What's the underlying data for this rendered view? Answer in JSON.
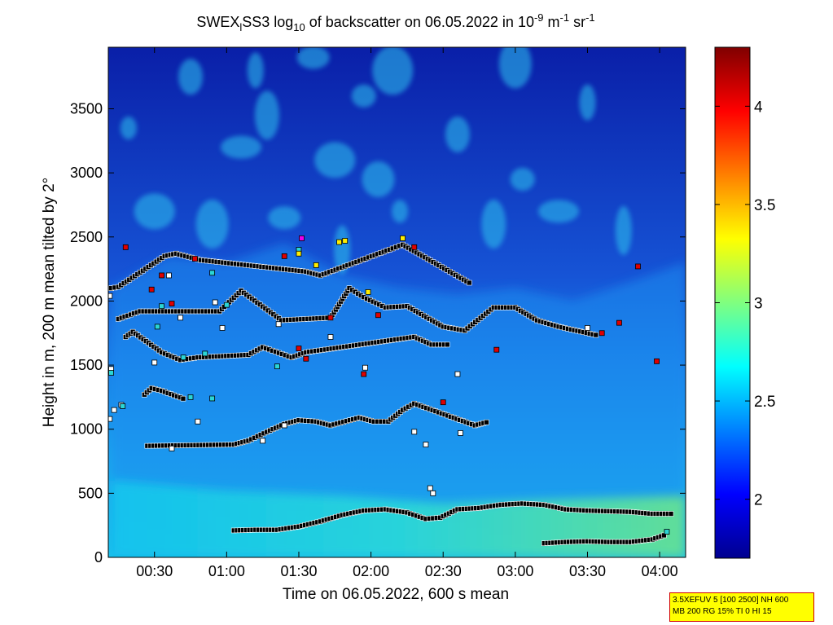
{
  "chart_data": {
    "type": "heatmap",
    "title": {
      "prefix": "SWEX",
      "sub1": "l",
      "mid": "SS3 log",
      "sub2": "10",
      "mid2": " of backscatter on 06.05.2022 in 10",
      "sup1": "-9",
      "mid3": " m",
      "sup2": "-1",
      "mid4": " sr",
      "sup3": "-1"
    },
    "xlabel": "Time on 06.05.2022, 600 s mean",
    "ylabel": "Height in m, 200 m mean tilted by 2°",
    "x_unit": "hours",
    "xlim": [
      0.18,
      4.18
    ],
    "ylim": [
      0,
      3980
    ],
    "x_ticks": [
      {
        "value": 0.5,
        "label": "00:30"
      },
      {
        "value": 1.0,
        "label": "01:00"
      },
      {
        "value": 1.5,
        "label": "01:30"
      },
      {
        "value": 2.0,
        "label": "02:00"
      },
      {
        "value": 2.5,
        "label": "02:30"
      },
      {
        "value": 3.0,
        "label": "03:00"
      },
      {
        "value": 3.5,
        "label": "03:30"
      },
      {
        "value": 4.0,
        "label": "04:00"
      }
    ],
    "y_ticks": [
      0,
      500,
      1000,
      1500,
      2000,
      2500,
      3000,
      3500
    ],
    "colorbar": {
      "colormap": "jet",
      "range": [
        1.7,
        4.3
      ],
      "ticks": [
        2,
        2.5,
        3,
        3.5,
        4
      ]
    },
    "surface_layer": [
      {
        "x": 0.2,
        "z": 600
      },
      {
        "x": 1.0,
        "z": 520
      },
      {
        "x": 1.8,
        "z": 480
      },
      {
        "x": 2.5,
        "z": 420
      },
      {
        "x": 3.2,
        "z": 450
      },
      {
        "x": 4.18,
        "z": 480
      }
    ],
    "aerosol_top": [
      {
        "x": 0.2,
        "z": 2100
      },
      {
        "x": 0.6,
        "z": 2350
      },
      {
        "x": 1.0,
        "z": 2300
      },
      {
        "x": 1.4,
        "z": 2450
      },
      {
        "x": 1.8,
        "z": 2200
      },
      {
        "x": 2.2,
        "z": 2100
      },
      {
        "x": 2.6,
        "z": 2050
      },
      {
        "x": 3.0,
        "z": 2100
      },
      {
        "x": 3.4,
        "z": 2000
      },
      {
        "x": 3.8,
        "z": 2150
      },
      {
        "x": 4.18,
        "z": 2300
      }
    ],
    "markers": [
      {
        "name": "boundary-layer-top",
        "color": "black",
        "points": [
          {
            "x": 1.05,
            "z": 210
          },
          {
            "x": 1.2,
            "z": 215
          },
          {
            "x": 1.35,
            "z": 215
          },
          {
            "x": 1.5,
            "z": 240
          },
          {
            "x": 1.65,
            "z": 280
          },
          {
            "x": 1.8,
            "z": 330
          },
          {
            "x": 1.95,
            "z": 365
          },
          {
            "x": 2.1,
            "z": 375
          },
          {
            "x": 2.25,
            "z": 350
          },
          {
            "x": 2.38,
            "z": 300
          },
          {
            "x": 2.48,
            "z": 310
          },
          {
            "x": 2.6,
            "z": 375
          },
          {
            "x": 2.75,
            "z": 385
          },
          {
            "x": 2.9,
            "z": 410
          },
          {
            "x": 3.05,
            "z": 420
          },
          {
            "x": 3.2,
            "z": 410
          },
          {
            "x": 3.35,
            "z": 375
          },
          {
            "x": 3.5,
            "z": 365
          },
          {
            "x": 3.65,
            "z": 360
          },
          {
            "x": 3.8,
            "z": 355
          },
          {
            "x": 3.95,
            "z": 340
          },
          {
            "x": 4.1,
            "z": 340
          }
        ]
      },
      {
        "name": "lower-layer",
        "color": "black",
        "points": [
          {
            "x": 3.2,
            "z": 110
          },
          {
            "x": 3.35,
            "z": 120
          },
          {
            "x": 3.5,
            "z": 125
          },
          {
            "x": 3.65,
            "z": 120
          },
          {
            "x": 3.8,
            "z": 120
          },
          {
            "x": 3.95,
            "z": 140
          },
          {
            "x": 4.05,
            "z": 180
          }
        ]
      },
      {
        "name": "layer-1000m",
        "color": "black",
        "points": [
          {
            "x": 0.45,
            "z": 870
          },
          {
            "x": 1.05,
            "z": 880
          },
          {
            "x": 1.15,
            "z": 910
          },
          {
            "x": 1.3,
            "z": 990
          },
          {
            "x": 1.4,
            "z": 1040
          },
          {
            "x": 1.5,
            "z": 1070
          },
          {
            "x": 1.62,
            "z": 1060
          },
          {
            "x": 1.72,
            "z": 1030
          },
          {
            "x": 1.92,
            "z": 1090
          },
          {
            "x": 2.02,
            "z": 1060
          },
          {
            "x": 2.12,
            "z": 1060
          },
          {
            "x": 2.22,
            "z": 1150
          },
          {
            "x": 2.3,
            "z": 1200
          },
          {
            "x": 2.72,
            "z": 1030
          },
          {
            "x": 2.82,
            "z": 1060
          }
        ]
      },
      {
        "name": "layer-1300m",
        "color": "black",
        "points": [
          {
            "x": 0.43,
            "z": 1270
          },
          {
            "x": 0.48,
            "z": 1320
          },
          {
            "x": 0.55,
            "z": 1300
          },
          {
            "x": 0.72,
            "z": 1230
          }
        ]
      },
      {
        "name": "layer-1600m",
        "color": "black",
        "points": [
          {
            "x": 0.3,
            "z": 1720
          },
          {
            "x": 0.35,
            "z": 1760
          },
          {
            "x": 0.55,
            "z": 1600
          },
          {
            "x": 0.68,
            "z": 1540
          },
          {
            "x": 0.8,
            "z": 1560
          },
          {
            "x": 1.15,
            "z": 1580
          },
          {
            "x": 1.25,
            "z": 1640
          },
          {
            "x": 1.45,
            "z": 1560
          },
          {
            "x": 1.55,
            "z": 1600
          },
          {
            "x": 2.3,
            "z": 1720
          },
          {
            "x": 2.42,
            "z": 1660
          },
          {
            "x": 2.55,
            "z": 1660
          }
        ]
      },
      {
        "name": "layer-1900m",
        "color": "black",
        "points": [
          {
            "x": 0.25,
            "z": 1860
          },
          {
            "x": 0.4,
            "z": 1920
          },
          {
            "x": 0.95,
            "z": 1920
          },
          {
            "x": 1.1,
            "z": 2080
          },
          {
            "x": 1.38,
            "z": 1850
          },
          {
            "x": 1.72,
            "z": 1870
          },
          {
            "x": 1.85,
            "z": 2100
          },
          {
            "x": 1.95,
            "z": 2030
          },
          {
            "x": 2.1,
            "z": 1950
          },
          {
            "x": 2.25,
            "z": 1960
          },
          {
            "x": 2.5,
            "z": 1800
          },
          {
            "x": 2.65,
            "z": 1770
          },
          {
            "x": 2.85,
            "z": 1950
          },
          {
            "x": 3.0,
            "z": 1950
          },
          {
            "x": 3.15,
            "z": 1850
          },
          {
            "x": 3.3,
            "z": 1800
          },
          {
            "x": 3.58,
            "z": 1730
          }
        ]
      },
      {
        "name": "layer-2100m",
        "color": "black",
        "points": [
          {
            "x": 0.2,
            "z": 2100
          },
          {
            "x": 0.25,
            "z": 2110
          },
          {
            "x": 0.57,
            "z": 2350
          },
          {
            "x": 0.65,
            "z": 2370
          },
          {
            "x": 0.82,
            "z": 2320
          },
          {
            "x": 1.55,
            "z": 2230
          },
          {
            "x": 1.65,
            "z": 2200
          },
          {
            "x": 2.15,
            "z": 2410
          },
          {
            "x": 2.22,
            "z": 2440
          },
          {
            "x": 2.7,
            "z": 2130
          }
        ]
      },
      {
        "name": "other-detections",
        "color": "white",
        "points": [
          {
            "x": 0.19,
            "z": 2040
          },
          {
            "x": 0.2,
            "z": 1470
          },
          {
            "x": 0.22,
            "z": 1150
          },
          {
            "x": 0.19,
            "z": 1080
          },
          {
            "x": 0.27,
            "z": 1190
          },
          {
            "x": 0.5,
            "z": 1520
          },
          {
            "x": 0.6,
            "z": 2200
          },
          {
            "x": 0.62,
            "z": 850
          },
          {
            "x": 0.68,
            "z": 1870
          },
          {
            "x": 0.8,
            "z": 1060
          },
          {
            "x": 0.92,
            "z": 1990
          },
          {
            "x": 0.97,
            "z": 1790
          },
          {
            "x": 1.25,
            "z": 910
          },
          {
            "x": 1.36,
            "z": 1820
          },
          {
            "x": 1.4,
            "z": 1030
          },
          {
            "x": 1.72,
            "z": 1720
          },
          {
            "x": 1.96,
            "z": 1480
          },
          {
            "x": 2.3,
            "z": 980
          },
          {
            "x": 2.38,
            "z": 880
          },
          {
            "x": 2.62,
            "z": 970
          },
          {
            "x": 2.6,
            "z": 1430
          },
          {
            "x": 2.41,
            "z": 540
          },
          {
            "x": 2.43,
            "z": 500
          },
          {
            "x": 3.5,
            "z": 1790
          }
        ]
      },
      {
        "name": "cyan-detections",
        "color": "cyan",
        "points": [
          {
            "x": 0.2,
            "z": 1440
          },
          {
            "x": 0.28,
            "z": 1180
          },
          {
            "x": 0.52,
            "z": 1800
          },
          {
            "x": 0.55,
            "z": 1960
          },
          {
            "x": 0.7,
            "z": 1560
          },
          {
            "x": 0.75,
            "z": 1250
          },
          {
            "x": 0.85,
            "z": 1590
          },
          {
            "x": 0.9,
            "z": 2220
          },
          {
            "x": 0.9,
            "z": 1240
          },
          {
            "x": 1.0,
            "z": 1970
          },
          {
            "x": 1.35,
            "z": 1490
          },
          {
            "x": 1.5,
            "z": 2400
          },
          {
            "x": 4.05,
            "z": 200
          }
        ]
      },
      {
        "name": "red-detections",
        "color": "red",
        "points": [
          {
            "x": 0.3,
            "z": 2420
          },
          {
            "x": 0.48,
            "z": 2090
          },
          {
            "x": 0.55,
            "z": 2200
          },
          {
            "x": 0.62,
            "z": 1980
          },
          {
            "x": 0.78,
            "z": 2330
          },
          {
            "x": 1.4,
            "z": 2350
          },
          {
            "x": 1.5,
            "z": 1630
          },
          {
            "x": 1.55,
            "z": 1550
          },
          {
            "x": 1.72,
            "z": 1870
          },
          {
            "x": 1.95,
            "z": 1430
          },
          {
            "x": 2.05,
            "z": 1890
          },
          {
            "x": 2.3,
            "z": 2420
          },
          {
            "x": 2.5,
            "z": 1210
          },
          {
            "x": 2.87,
            "z": 1620
          },
          {
            "x": 3.6,
            "z": 1750
          },
          {
            "x": 3.72,
            "z": 1830
          },
          {
            "x": 3.85,
            "z": 2270
          },
          {
            "x": 3.98,
            "z": 1530
          }
        ]
      },
      {
        "name": "yellow-detections",
        "color": "yellow",
        "points": [
          {
            "x": 1.5,
            "z": 2370
          },
          {
            "x": 1.78,
            "z": 2460
          },
          {
            "x": 1.82,
            "z": 2470
          },
          {
            "x": 1.62,
            "z": 2280
          },
          {
            "x": 2.22,
            "z": 2490
          },
          {
            "x": 1.98,
            "z": 2070
          }
        ]
      },
      {
        "name": "magenta-detections",
        "color": "magenta",
        "points": [
          {
            "x": 1.52,
            "z": 2490
          }
        ]
      }
    ],
    "info_box": {
      "line1": "3.5XEFUV 5 [100 2500] NH 600",
      "line2": "MB 200 RG 15% TI 0 HI 15"
    }
  }
}
